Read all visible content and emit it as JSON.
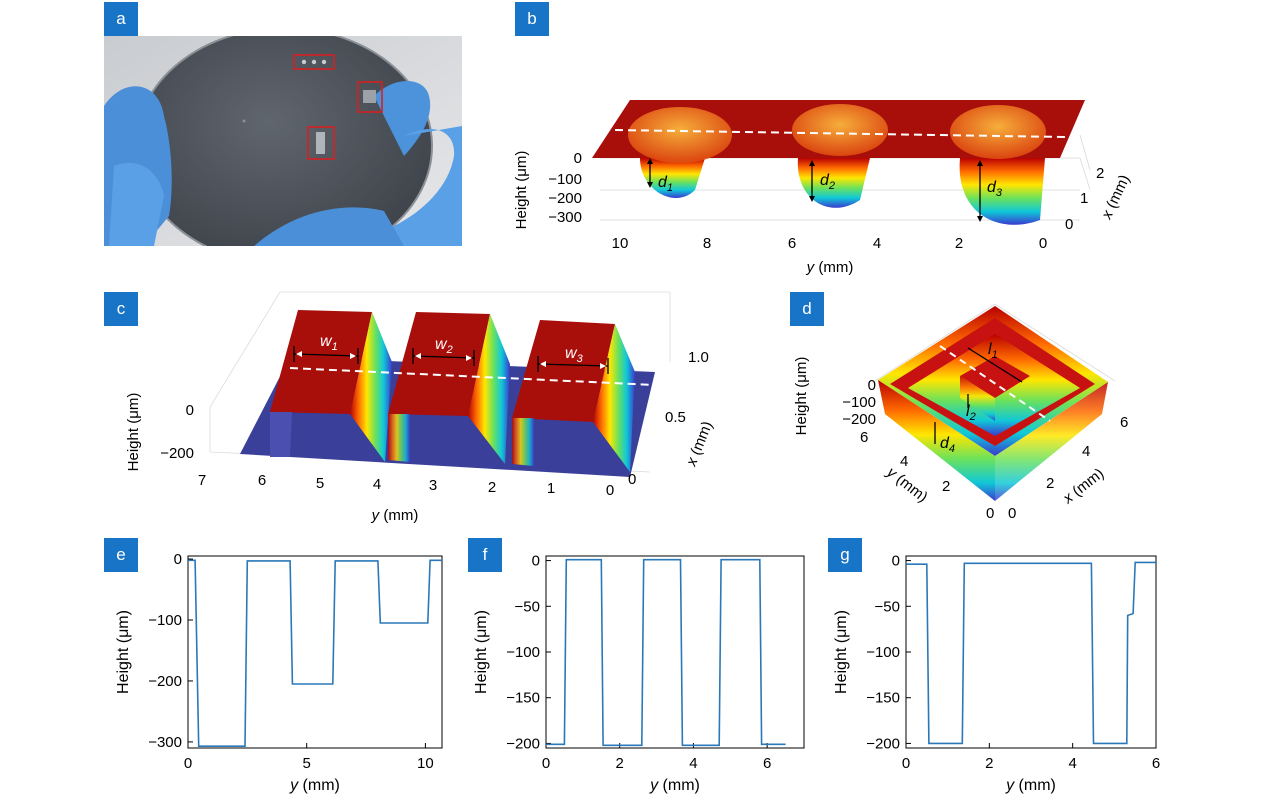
{
  "panels": {
    "a": {
      "label": "a"
    },
    "b": {
      "label": "b"
    },
    "c": {
      "label": "c"
    },
    "d": {
      "label": "d"
    },
    "e": {
      "label": "e"
    },
    "f": {
      "label": "f"
    },
    "g": {
      "label": "g"
    }
  },
  "colors": {
    "tag": "#1874c6",
    "line": "#2a78b8",
    "rim": "#8b0000",
    "box": "#d62020"
  },
  "surface_b": {
    "ylabel": "Height (μm)",
    "xlabel_var": "y",
    "xlabel_unit": "(mm)",
    "depth_label_var": "x",
    "depth_label_unit": "(mm)",
    "y_ticks": [
      "10",
      "8",
      "6",
      "4",
      "2",
      "0"
    ],
    "z_ticks": [
      "0",
      "−100",
      "−200",
      "−300"
    ],
    "x_ticks": [
      "2",
      "1",
      "0"
    ],
    "annotations": [
      {
        "main": "d",
        "sub": "1"
      },
      {
        "main": "d",
        "sub": "2"
      },
      {
        "main": "d",
        "sub": "3"
      }
    ]
  },
  "surface_c": {
    "ylabel": "Height (μm)",
    "xlabel_var": "y",
    "xlabel_unit": "(mm)",
    "depth_label_var": "x",
    "depth_label_unit": "(mm)",
    "y_ticks": [
      "7",
      "6",
      "5",
      "4",
      "3",
      "2",
      "1",
      "0"
    ],
    "z_ticks": [
      "0",
      "−200"
    ],
    "x_ticks": [
      "1.0",
      "0.5",
      "0"
    ],
    "annotations": [
      {
        "main": "w",
        "sub": "1"
      },
      {
        "main": "w",
        "sub": "2"
      },
      {
        "main": "w",
        "sub": "3"
      }
    ]
  },
  "surface_d": {
    "ylabel": "Height (μm)",
    "y_label_var": "y",
    "y_label_unit": "(mm)",
    "x_label_var": "x",
    "x_label_unit": "(mm)",
    "z_ticks": [
      "0",
      "−100",
      "−200"
    ],
    "y_ticks": [
      "6",
      "4",
      "2",
      "0"
    ],
    "x_ticks": [
      "0",
      "2",
      "4",
      "6"
    ],
    "annotations": [
      {
        "main": "l",
        "sub": "1"
      },
      {
        "main": "l",
        "sub": "2"
      },
      {
        "main": "d",
        "sub": "4"
      }
    ]
  },
  "chart_data": [
    {
      "id": "e",
      "type": "line",
      "xlabel_var": "y",
      "xlabel_unit": "(mm)",
      "ylabel": "Height (μm)",
      "xlim": [
        0,
        10.7
      ],
      "ylim": [
        -310,
        5
      ],
      "xticks": [
        0,
        5,
        10
      ],
      "yticks": [
        0,
        -100,
        -200,
        -300
      ],
      "series": [
        {
          "x": [
            0,
            0.3,
            0.45,
            2.4,
            2.5,
            4.3,
            4.4,
            6.1,
            6.2,
            8.0,
            8.1,
            10.1,
            10.2,
            10.7
          ],
          "y": [
            -2,
            -2,
            -307,
            -307,
            -3,
            -3,
            -205,
            -205,
            -3,
            -3,
            -105,
            -105,
            -2,
            -2
          ]
        }
      ]
    },
    {
      "id": "f",
      "type": "line",
      "xlabel_var": "y",
      "xlabel_unit": "(mm)",
      "ylabel": "Height (μm)",
      "xlim": [
        0,
        7
      ],
      "ylim": [
        -205,
        5
      ],
      "xticks": [
        0,
        2,
        4,
        6
      ],
      "yticks": [
        0,
        -50,
        -100,
        -150,
        -200
      ],
      "series": [
        {
          "x": [
            0,
            0.5,
            0.55,
            1.5,
            1.55,
            2.6,
            2.65,
            3.65,
            3.7,
            4.7,
            4.75,
            5.8,
            5.85,
            6.5
          ],
          "y": [
            -201,
            -201,
            1,
            1,
            -202,
            -202,
            1,
            1,
            -202,
            -202,
            1,
            1,
            -201,
            -201
          ]
        }
      ]
    },
    {
      "id": "g",
      "type": "line",
      "xlabel_var": "y",
      "xlabel_unit": "(mm)",
      "ylabel": "Height (μm)",
      "xlim": [
        0,
        6
      ],
      "ylim": [
        -205,
        5
      ],
      "xticks": [
        0,
        2,
        4,
        6
      ],
      "yticks": [
        0,
        -50,
        -100,
        -150,
        -200
      ],
      "series": [
        {
          "x": [
            0,
            0.5,
            0.55,
            1.35,
            1.4,
            4.45,
            4.5,
            5.3,
            5.32,
            5.45,
            5.5,
            5.9,
            6.0
          ],
          "y": [
            -4,
            -4,
            -200,
            -200,
            -3,
            -3,
            -200,
            -200,
            -60,
            -58,
            -2,
            -2,
            -2
          ]
        }
      ]
    }
  ]
}
